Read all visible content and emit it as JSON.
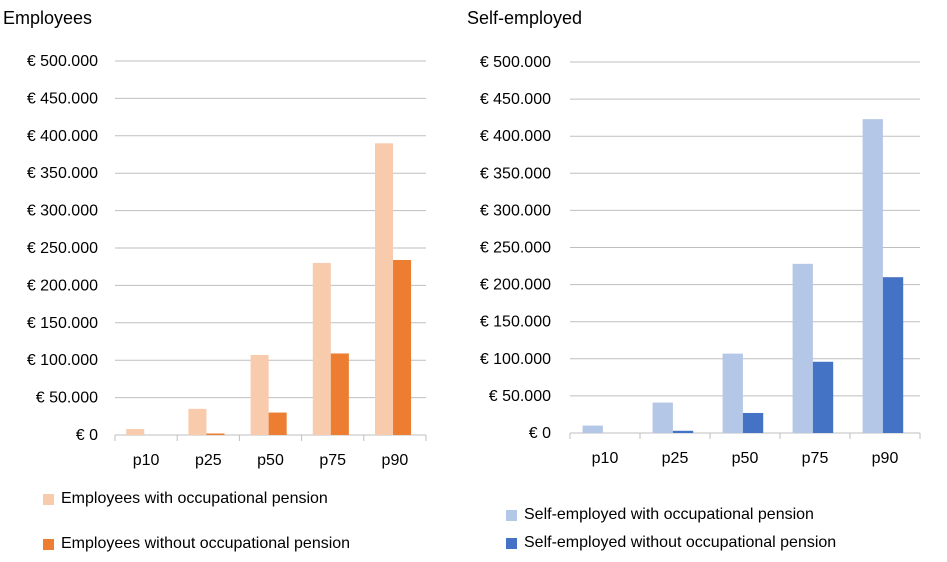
{
  "chart_data": [
    {
      "type": "bar",
      "title": "Employees",
      "categories": [
        "p10",
        "p25",
        "p50",
        "p75",
        "p90"
      ],
      "y_ticks": [
        "€ 0",
        "€ 50.000",
        "€ 100.000",
        "€ 150.000",
        "€ 200.000",
        "€ 250.000",
        "€ 300.000",
        "€ 350.000",
        "€ 400.000",
        "€ 450.000",
        "€ 500.000"
      ],
      "ylim": [
        0,
        500000
      ],
      "grid": true,
      "legend_position": "bottom",
      "series": [
        {
          "name": "Employees with occupational pension",
          "color": "#f8cbad",
          "values": [
            8000,
            35000,
            107000,
            230000,
            390000
          ]
        },
        {
          "name": "Employees without occupational pension",
          "color": "#ed7d31",
          "values": [
            0,
            2000,
            30000,
            109000,
            234000
          ]
        }
      ]
    },
    {
      "type": "bar",
      "title": "Self-employed",
      "categories": [
        "p10",
        "p25",
        "p50",
        "p75",
        "p90"
      ],
      "y_ticks": [
        "€ 0",
        "€ 50.000",
        "€ 100.000",
        "€ 150.000",
        "€ 200.000",
        "€ 250.000",
        "€ 300.000",
        "€ 350.000",
        "€ 400.000",
        "€ 450.000",
        "€ 500.000"
      ],
      "ylim": [
        0,
        500000
      ],
      "grid": true,
      "legend_position": "bottom",
      "series": [
        {
          "name": "Self-employed with occupational pension",
          "color": "#b4c7e7",
          "values": [
            10000,
            41000,
            107000,
            228000,
            423000
          ]
        },
        {
          "name": "Self-employed without occupational pension",
          "color": "#4472c4",
          "values": [
            0,
            3000,
            27000,
            96000,
            210000
          ]
        }
      ]
    }
  ]
}
